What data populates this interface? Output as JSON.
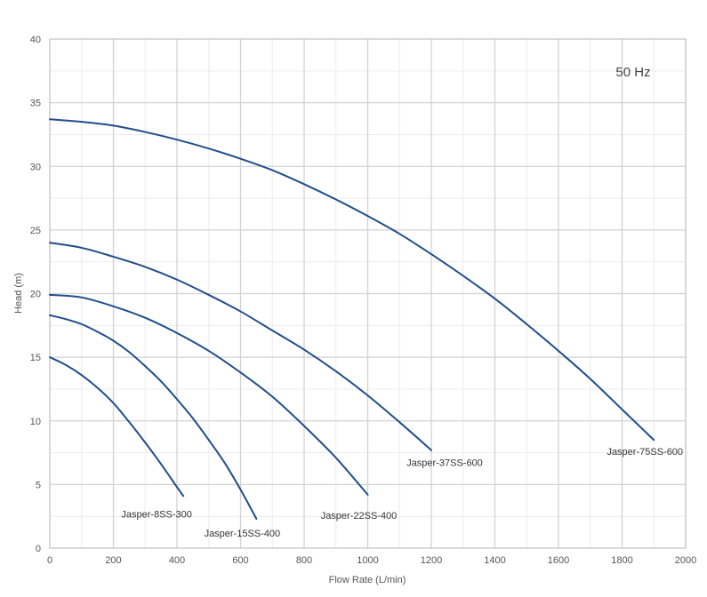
{
  "chart_data": {
    "type": "line",
    "title": "",
    "annotation": "50 Hz",
    "xlabel": "Flow Rate (L/min)",
    "ylabel": "Head (m)",
    "xlim": [
      0,
      2000
    ],
    "ylim": [
      0,
      40
    ],
    "xticks": [
      0,
      200,
      400,
      600,
      800,
      1000,
      1200,
      1400,
      1600,
      1800,
      2000
    ],
    "yticks": [
      0,
      5,
      10,
      15,
      20,
      25,
      30,
      35,
      40
    ],
    "x_minor_step": 100,
    "y_minor_step": 2.5,
    "grid": true,
    "legend": "none",
    "line_color": "#1f4e8c",
    "series": [
      {
        "name": "Jasper-8SS-300",
        "x": [
          0,
          50,
          100,
          150,
          200,
          250,
          300,
          350,
          400,
          420
        ],
        "y": [
          15.0,
          14.4,
          13.6,
          12.6,
          11.4,
          9.9,
          8.3,
          6.6,
          4.8,
          4.1
        ]
      },
      {
        "name": "Jasper-15SS-400",
        "x": [
          0,
          50,
          100,
          150,
          200,
          250,
          300,
          350,
          400,
          450,
          500,
          550,
          600,
          650
        ],
        "y": [
          18.3,
          18.0,
          17.6,
          17.0,
          16.3,
          15.4,
          14.3,
          13.1,
          11.7,
          10.2,
          8.5,
          6.7,
          4.6,
          2.3
        ]
      },
      {
        "name": "Jasper-22SS-400",
        "x": [
          0,
          100,
          200,
          300,
          400,
          500,
          600,
          700,
          800,
          900,
          1000
        ],
        "y": [
          19.9,
          19.7,
          19.0,
          18.1,
          16.9,
          15.5,
          13.8,
          11.9,
          9.6,
          7.1,
          4.2
        ]
      },
      {
        "name": "Jasper-37SS-600",
        "x": [
          0,
          100,
          200,
          300,
          400,
          500,
          600,
          700,
          800,
          900,
          1000,
          1100,
          1200
        ],
        "y": [
          24.0,
          23.6,
          22.9,
          22.1,
          21.1,
          19.9,
          18.6,
          17.1,
          15.6,
          13.9,
          12.0,
          9.9,
          7.7
        ]
      },
      {
        "name": "Jasper-75SS-600",
        "x": [
          0,
          100,
          200,
          300,
          400,
          500,
          600,
          700,
          800,
          900,
          1000,
          1100,
          1200,
          1300,
          1400,
          1500,
          1600,
          1700,
          1800,
          1900
        ],
        "y": [
          33.7,
          33.5,
          33.2,
          32.7,
          32.1,
          31.4,
          30.6,
          29.7,
          28.6,
          27.4,
          26.1,
          24.7,
          23.1,
          21.4,
          19.6,
          17.6,
          15.5,
          13.3,
          10.9,
          8.5
        ]
      }
    ],
    "series_labels": [
      "Jasper-8SS-300",
      "Jasper-15SS-400",
      "Jasper-22SS-400",
      "Jasper-37SS-600",
      "Jasper-75SS-600"
    ]
  }
}
